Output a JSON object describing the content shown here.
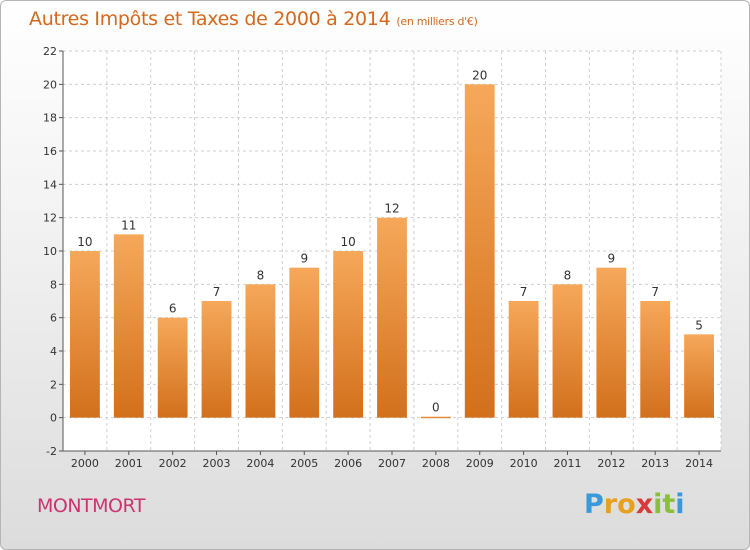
{
  "header": {
    "title": "Autres Impôts et Taxes de 2000 à 2014",
    "unit": "(en milliers d'€)"
  },
  "footer": {
    "town": "MONTMORT",
    "logo_letters": [
      "P",
      "r",
      "o",
      "x",
      "i",
      "t",
      "i"
    ],
    "logo_colors": [
      "#3a9ad9",
      "#e8a020",
      "#e8a020",
      "#d63a3a",
      "#8bbf3a",
      "#8bbf3a",
      "#3a9ad9"
    ]
  },
  "colors": {
    "bar_top": "#f6a85a",
    "bar_bottom": "#d2701c",
    "title": "#d2691e",
    "town": "#c9356f"
  },
  "chart_data": {
    "type": "bar",
    "title": "Autres Impôts et Taxes de 2000 à 2014",
    "subtitle": "(en milliers d'€)",
    "categories": [
      "2000",
      "2001",
      "2002",
      "2003",
      "2004",
      "2005",
      "2006",
      "2007",
      "2008",
      "2009",
      "2010",
      "2011",
      "2012",
      "2013",
      "2014"
    ],
    "values": [
      10,
      11,
      6,
      7,
      8,
      9,
      10,
      12,
      0,
      20,
      7,
      8,
      9,
      7,
      5
    ],
    "ylim": [
      -2,
      22
    ],
    "yticks": [
      -2,
      0,
      2,
      4,
      6,
      8,
      10,
      12,
      14,
      16,
      18,
      20,
      22
    ],
    "grid": true,
    "legend": "none"
  }
}
